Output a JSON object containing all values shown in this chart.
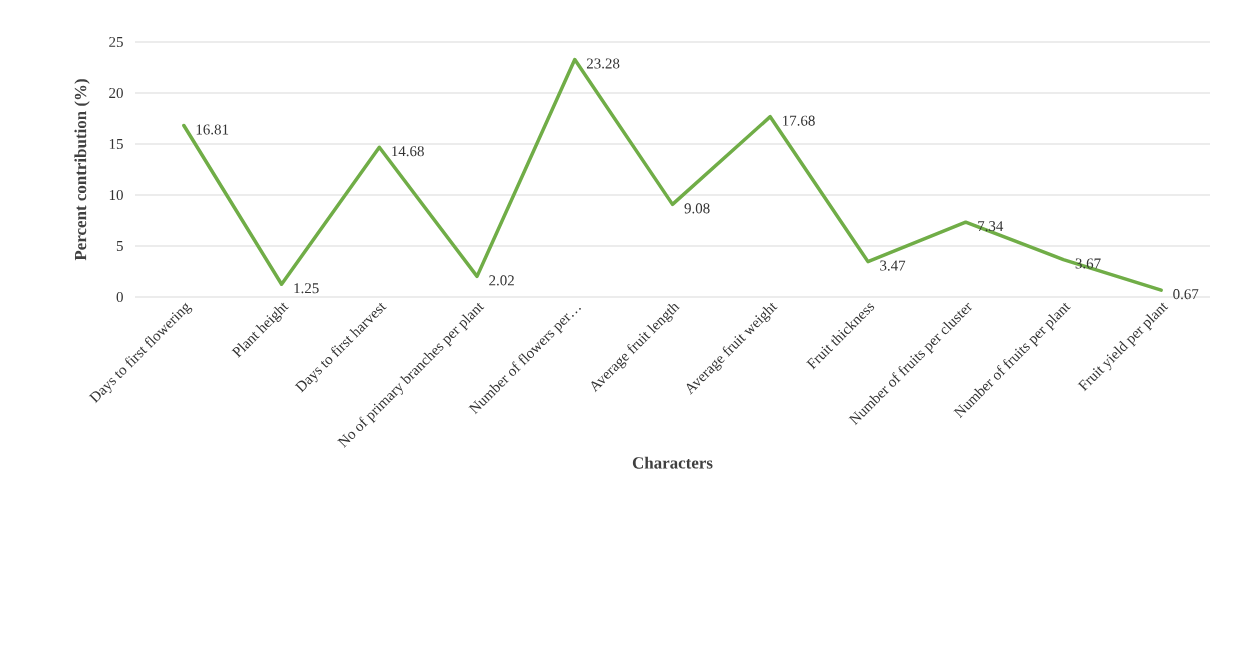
{
  "chart_data": {
    "type": "line",
    "xlabel": "Characters",
    "ylabel": "Percent  contribution  (%)",
    "categories": [
      "Days to first flowering",
      "Plant height",
      "Days to first harvest",
      "No of primary branches per plant",
      "Number of flowers per…",
      "Average fruit length",
      "Average fruit weight",
      "Fruit thickness",
      "Number of fruits per cluster",
      "Number of fruits per plant",
      "Fruit yield per plant"
    ],
    "values": [
      16.81,
      1.25,
      14.68,
      2.02,
      23.28,
      9.08,
      17.68,
      3.47,
      7.34,
      3.67,
      0.67
    ],
    "color": "#70ad47",
    "ylim": [
      0,
      25
    ],
    "yticks": [
      0,
      5,
      10,
      15,
      20,
      25
    ],
    "grid": "y",
    "data_labels": true,
    "marker": "none",
    "line_style": "solid"
  }
}
